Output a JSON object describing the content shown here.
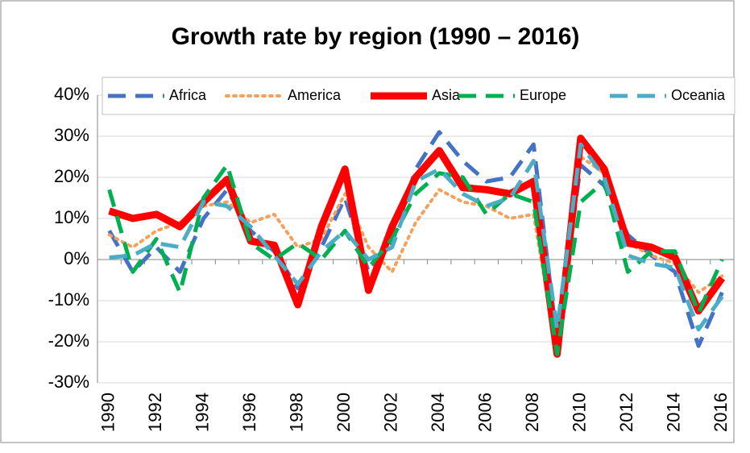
{
  "chart_data": {
    "type": "line",
    "title": "Growth rate by region (1990 – 2016)",
    "categories": [
      "1990",
      null,
      "1992",
      null,
      "1994",
      null,
      "1996",
      null,
      "1998",
      null,
      "2000",
      null,
      "2002",
      null,
      "2004",
      null,
      "2006",
      null,
      "2008",
      null,
      "2010",
      null,
      "2012",
      null,
      "2014",
      null,
      "2016"
    ],
    "series": [
      {
        "name": "Africa",
        "color": "#4472c4",
        "dash": "dashed",
        "values": [
          7,
          -3,
          3,
          -3,
          10,
          17,
          7,
          2,
          -7,
          3,
          15,
          -3,
          4,
          22,
          31,
          24,
          19,
          20,
          28,
          -20,
          23,
          18,
          6,
          1,
          -3,
          -21,
          -8
        ]
      },
      {
        "name": "America",
        "color": "#f4a15d",
        "dash": "dotted",
        "values": [
          6,
          3,
          7,
          9,
          13,
          14,
          9,
          11,
          3,
          5,
          16,
          3,
          -3,
          9,
          17,
          14,
          13,
          10,
          11,
          -23,
          25,
          21,
          4,
          1,
          -1,
          -8,
          -4
        ]
      },
      {
        "name": "Asia",
        "color": "#ff0000",
        "dash": "solid",
        "values": [
          11.8,
          10,
          11,
          8,
          14,
          19.5,
          4.5,
          3.5,
          -11,
          8,
          22,
          -7.5,
          8,
          20,
          26.5,
          17.5,
          17,
          16,
          19,
          -23,
          29.5,
          22,
          4,
          3,
          0.5,
          -12.5,
          -4.5
        ]
      },
      {
        "name": "Europe",
        "color": "#00b050",
        "dash": "dashed",
        "values": [
          17,
          -3,
          5,
          -8,
          15,
          23,
          4,
          0,
          4,
          0,
          7,
          -2,
          5,
          16,
          21,
          20,
          11,
          16,
          14,
          -23,
          14,
          19,
          -3,
          2,
          2,
          -13,
          0
        ]
      },
      {
        "name": "Oceania",
        "color": "#4bacc6",
        "dash": "dashed",
        "values": [
          0.5,
          1,
          4,
          3,
          14,
          13,
          8,
          1,
          -6,
          2,
          7,
          0,
          3,
          19,
          22,
          16,
          13,
          15,
          24,
          -17,
          28,
          20,
          1,
          -1,
          -2,
          -17,
          -9
        ]
      }
    ],
    "ylim": [
      -30,
      40
    ],
    "yticks": [
      {
        "value": -30,
        "label": "-30%"
      },
      {
        "value": -20,
        "label": "-20%"
      },
      {
        "value": -10,
        "label": "-10%"
      },
      {
        "value": 0,
        "label": "0%"
      },
      {
        "value": 10,
        "label": "10%"
      },
      {
        "value": 20,
        "label": "20%"
      },
      {
        "value": 30,
        "label": "30%"
      },
      {
        "value": 40,
        "label": "40%"
      }
    ],
    "grid": true,
    "legend": "top"
  }
}
